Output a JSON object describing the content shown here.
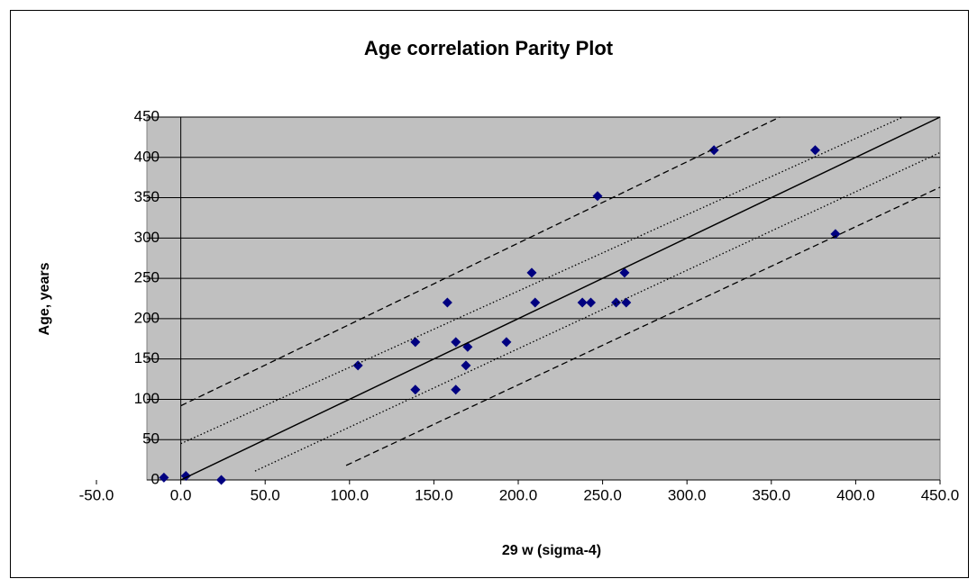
{
  "chart_data": {
    "type": "scatter",
    "title": "Age correlation Parity Plot",
    "xlabel": "29 w (sigma-4)",
    "ylabel": "Age, years",
    "xlim": [
      -50,
      450
    ],
    "ylim": [
      0,
      450
    ],
    "xticks": [
      {
        "value": -50,
        "label": "-50.0"
      },
      {
        "value": 0,
        "label": "0.0"
      },
      {
        "value": 50,
        "label": "50.0"
      },
      {
        "value": 100,
        "label": "100.0"
      },
      {
        "value": 150,
        "label": "150.0"
      },
      {
        "value": 200,
        "label": "200.0"
      },
      {
        "value": 250,
        "label": "250.0"
      },
      {
        "value": 300,
        "label": "300.0"
      },
      {
        "value": 350,
        "label": "350.0"
      },
      {
        "value": 400,
        "label": "400.0"
      },
      {
        "value": 450,
        "label": "450.0"
      }
    ],
    "yticks": [
      0,
      50,
      100,
      150,
      200,
      250,
      300,
      350,
      400,
      450
    ],
    "grid": true,
    "background": "#c0c0c0",
    "series": [
      {
        "color": "#000080",
        "marker": "diamond",
        "x": [
          -10,
          3,
          24,
          105,
          139,
          139,
          158,
          163,
          163,
          169,
          170,
          193,
          208,
          210,
          238,
          243,
          247,
          258,
          263,
          264,
          316,
          376,
          388
        ],
        "values": [
          3,
          5,
          0,
          142,
          171,
          112,
          220,
          171,
          112,
          142,
          165,
          171,
          257,
          220,
          220,
          220,
          352,
          220,
          257,
          220,
          409,
          409,
          305
        ]
      },
      {
        "color": "#000000",
        "line": "solid",
        "x": [
          0,
          450
        ],
        "values": [
          0,
          450
        ]
      },
      {
        "color": "#000000",
        "line": "dotted",
        "x": [
          0,
          428
        ],
        "values": [
          45,
          450
        ]
      },
      {
        "color": "#000000",
        "line": "dotted",
        "x": [
          44,
          450
        ],
        "values": [
          11,
          406
        ]
      },
      {
        "color": "#000000",
        "line": "dashed",
        "x": [
          0,
          355
        ],
        "values": [
          92,
          450
        ]
      },
      {
        "color": "#000000",
        "line": "dashed",
        "x": [
          98,
          450
        ],
        "values": [
          18,
          363
        ]
      }
    ]
  }
}
